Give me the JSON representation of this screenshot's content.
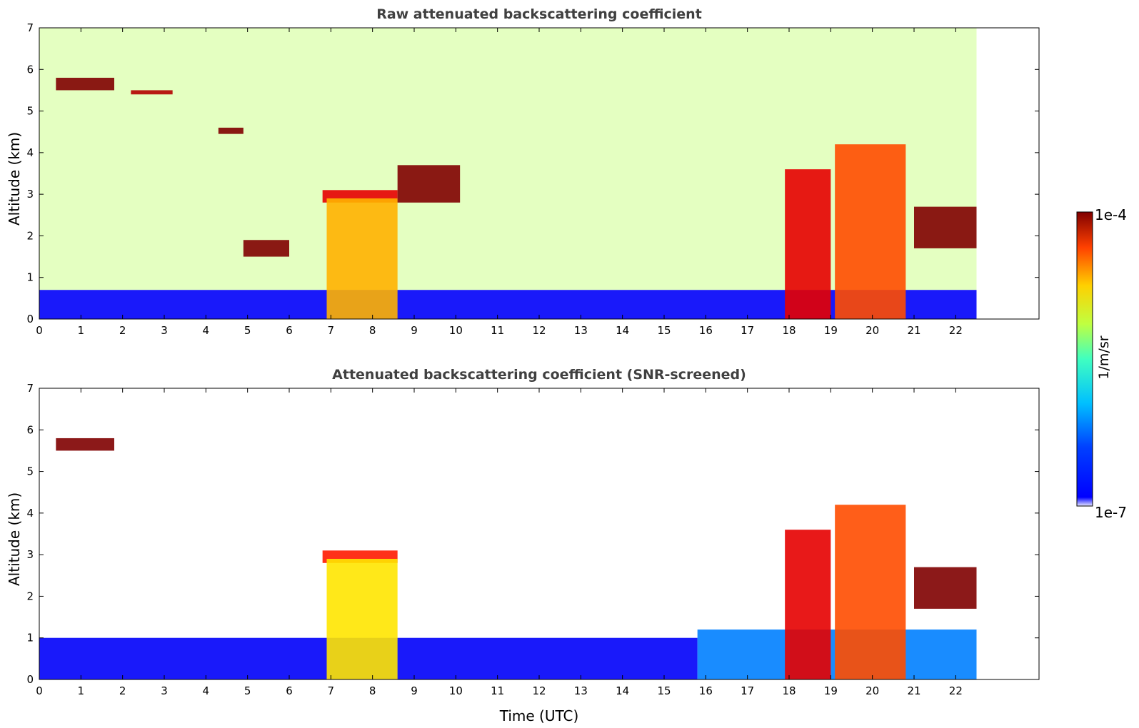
{
  "chart_data": [
    {
      "type": "heatmap",
      "title": "Raw attenuated backscattering coefficient",
      "xlabel": "",
      "ylabel": "Altitude (km)",
      "xlim": [
        0,
        24
      ],
      "ylim": [
        0,
        7
      ],
      "x_ticks": [
        "0",
        "1",
        "2",
        "3",
        "4",
        "5",
        "6",
        "7",
        "8",
        "9",
        "10",
        "11",
        "12",
        "13",
        "14",
        "15",
        "16",
        "17",
        "18",
        "19",
        "20",
        "21",
        "22"
      ],
      "y_ticks": [
        "0",
        "1",
        "2",
        "3",
        "4",
        "5",
        "6",
        "7"
      ],
      "data_end_x": 22.5,
      "layers": [
        {
          "name": "boundary layer",
          "x": [
            0,
            22.5
          ],
          "y": [
            0,
            0.7
          ],
          "level": 0.12
        },
        {
          "name": "noise",
          "x": [
            0,
            22.5
          ],
          "y": [
            0.7,
            7
          ],
          "level": 0.55
        },
        {
          "name": "cirrus 1",
          "x": [
            0.4,
            1.8
          ],
          "y": [
            5.5,
            5.8
          ],
          "level": 1.0
        },
        {
          "name": "cirrus 2",
          "x": [
            2.2,
            3.2
          ],
          "y": [
            5.4,
            5.5
          ],
          "level": 0.95
        },
        {
          "name": "cloud 4.5",
          "x": [
            4.3,
            4.9
          ],
          "y": [
            4.45,
            4.6
          ],
          "level": 1.0
        },
        {
          "name": "cloud 1.7",
          "x": [
            4.9,
            6.0
          ],
          "y": [
            1.5,
            1.9
          ],
          "level": 1.0
        },
        {
          "name": "cloud base",
          "x": [
            6.8,
            8.6
          ],
          "y": [
            2.8,
            3.1
          ],
          "level": 0.9
        },
        {
          "name": "precip",
          "x": [
            6.9,
            8.6
          ],
          "y": [
            0,
            2.9
          ],
          "level": 0.7
        },
        {
          "name": "cloud 3.5",
          "x": [
            8.6,
            10.1
          ],
          "y": [
            2.8,
            3.7
          ],
          "level": 1.0
        },
        {
          "name": "evening cloud",
          "x": [
            17.9,
            19.0
          ],
          "y": [
            0,
            3.6
          ],
          "level": 0.9
        },
        {
          "name": "evening cloud 2",
          "x": [
            19.1,
            20.8
          ],
          "y": [
            0,
            4.2
          ],
          "level": 0.8
        },
        {
          "name": "aerosol layer",
          "x": [
            21.0,
            22.5
          ],
          "y": [
            1.7,
            2.7
          ],
          "level": 1.0
        }
      ]
    },
    {
      "type": "heatmap",
      "title": "Attenuated backscattering coefficient (SNR-screened)",
      "xlabel": "Time (UTC)",
      "ylabel": "Altitude (km)",
      "xlim": [
        0,
        24
      ],
      "ylim": [
        0,
        7
      ],
      "x_ticks": [
        "0",
        "1",
        "2",
        "3",
        "4",
        "5",
        "6",
        "7",
        "8",
        "9",
        "10",
        "11",
        "12",
        "13",
        "14",
        "15",
        "16",
        "17",
        "18",
        "19",
        "20",
        "21",
        "22"
      ],
      "y_ticks": [
        "0",
        "1",
        "2",
        "3",
        "4",
        "5",
        "6",
        "7"
      ],
      "data_end_x": 22.5,
      "layers": [
        {
          "name": "boundary layer",
          "x": [
            0,
            15.8
          ],
          "y": [
            0,
            1.0
          ],
          "level": 0.12
        },
        {
          "name": "boundary layer late",
          "x": [
            15.8,
            22.5
          ],
          "y": [
            0,
            1.2
          ],
          "level": 0.25
        },
        {
          "name": "cirrus 1",
          "x": [
            0.4,
            1.8
          ],
          "y": [
            5.5,
            5.8
          ],
          "level": 1.0
        },
        {
          "name": "cloud base",
          "x": [
            6.8,
            8.6
          ],
          "y": [
            2.8,
            3.1
          ],
          "level": 0.85
        },
        {
          "name": "precip",
          "x": [
            6.9,
            8.6
          ],
          "y": [
            0,
            2.9
          ],
          "level": 0.65
        },
        {
          "name": "evening cloud",
          "x": [
            17.9,
            19.0
          ],
          "y": [
            0,
            3.6
          ],
          "level": 0.9
        },
        {
          "name": "evening cloud 2",
          "x": [
            19.1,
            20.8
          ],
          "y": [
            0,
            4.2
          ],
          "level": 0.8
        },
        {
          "name": "aerosol layer",
          "x": [
            21.0,
            22.5
          ],
          "y": [
            1.7,
            2.7
          ],
          "level": 1.0
        }
      ]
    }
  ],
  "colorbar": {
    "max_label": "1e-4",
    "min_label": "1e-7",
    "unit": "1/m/sr",
    "colormap": "jet"
  }
}
